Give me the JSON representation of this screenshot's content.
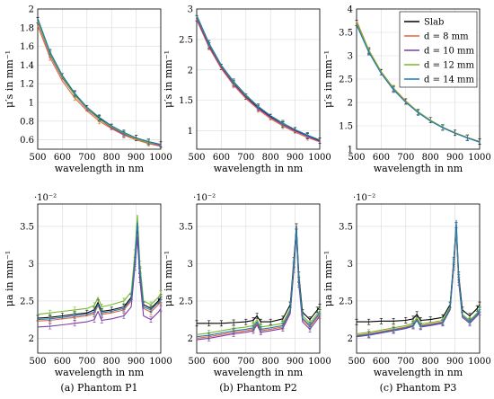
{
  "figure": {
    "legend_entries": [
      "Slab",
      "d = 8 mm",
      "d = 10 mm",
      "d = 12 mm",
      "d = 14 mm"
    ],
    "colors": {
      "Slab": "#000000",
      "d = 8 mm": "#e8643c",
      "d = 10 mm": "#7a3fa8",
      "d = 12 mm": "#76b82a",
      "d = 14 mm": "#1f77b4"
    }
  },
  "chart_data": [
    {
      "type": "line",
      "panel": "P1-mus",
      "xlabel": "wavelength in nm",
      "ylabel": "μ′s in mm⁻¹",
      "xlim": [
        500,
        1000
      ],
      "ylim": [
        0.5,
        2.0
      ],
      "xticks": [
        "500",
        "600",
        "700",
        "800",
        "900",
        "1000"
      ],
      "yticks": [
        "0.6",
        "0.8",
        "1",
        "1.2",
        "1.4",
        "1.6",
        "1.8",
        "2"
      ],
      "grid": true,
      "x": [
        500,
        550,
        600,
        650,
        700,
        750,
        800,
        850,
        900,
        950,
        1000
      ],
      "series": [
        {
          "name": "Slab",
          "values": [
            1.88,
            1.53,
            1.28,
            1.09,
            0.94,
            0.83,
            0.74,
            0.67,
            0.62,
            0.58,
            0.55
          ]
        },
        {
          "name": "d = 8 mm",
          "values": [
            1.82,
            1.48,
            1.23,
            1.05,
            0.91,
            0.8,
            0.72,
            0.65,
            0.6,
            0.56,
            0.53
          ]
        },
        {
          "name": "d = 10 mm",
          "values": [
            1.86,
            1.51,
            1.26,
            1.08,
            0.93,
            0.82,
            0.73,
            0.66,
            0.61,
            0.57,
            0.54
          ]
        },
        {
          "name": "d = 12 mm",
          "values": [
            1.87,
            1.52,
            1.27,
            1.08,
            0.94,
            0.82,
            0.74,
            0.67,
            0.61,
            0.57,
            0.55
          ]
        },
        {
          "name": "d = 14 mm",
          "values": [
            1.9,
            1.54,
            1.29,
            1.1,
            0.95,
            0.84,
            0.75,
            0.68,
            0.62,
            0.58,
            0.55
          ]
        }
      ]
    },
    {
      "type": "line",
      "panel": "P2-mus",
      "xlabel": "wavelength in nm",
      "ylabel": "μ′s in mm⁻¹",
      "xlim": [
        500,
        1000
      ],
      "ylim": [
        0.7,
        3.0
      ],
      "xticks": [
        "500",
        "600",
        "700",
        "800",
        "900",
        "1000"
      ],
      "yticks": [
        "1",
        "1.5",
        "2",
        "2.5",
        "3"
      ],
      "grid": true,
      "x": [
        500,
        550,
        600,
        650,
        700,
        750,
        800,
        850,
        900,
        950,
        1000
      ],
      "series": [
        {
          "name": "Slab",
          "values": [
            2.85,
            2.4,
            2.05,
            1.78,
            1.56,
            1.38,
            1.23,
            1.11,
            1.01,
            0.92,
            0.84
          ]
        },
        {
          "name": "d = 8 mm",
          "values": [
            2.82,
            2.37,
            2.02,
            1.75,
            1.53,
            1.35,
            1.2,
            1.08,
            0.98,
            0.89,
            0.82
          ]
        },
        {
          "name": "d = 10 mm",
          "values": [
            2.84,
            2.39,
            2.04,
            1.77,
            1.55,
            1.37,
            1.22,
            1.1,
            1.0,
            0.91,
            0.83
          ]
        },
        {
          "name": "d = 12 mm",
          "values": [
            2.88,
            2.43,
            2.07,
            1.8,
            1.58,
            1.4,
            1.25,
            1.12,
            1.02,
            0.93,
            0.85
          ]
        },
        {
          "name": "d = 14 mm",
          "values": [
            2.9,
            2.44,
            2.08,
            1.81,
            1.59,
            1.4,
            1.25,
            1.13,
            1.02,
            0.93,
            0.85
          ]
        }
      ]
    },
    {
      "type": "line",
      "panel": "P3-mus",
      "xlabel": "wavelength in nm",
      "ylabel": "μ′s in mm⁻¹",
      "xlim": [
        500,
        1000
      ],
      "ylim": [
        1.0,
        4.0
      ],
      "xticks": [
        "500",
        "600",
        "700",
        "800",
        "900",
        "1000"
      ],
      "yticks": [
        "1",
        "1.5",
        "2",
        "2.5",
        "3",
        "3.5",
        "4"
      ],
      "grid": true,
      "legend": "top-right",
      "x": [
        500,
        550,
        600,
        650,
        700,
        750,
        800,
        850,
        900,
        950,
        1000
      ],
      "series": [
        {
          "name": "Slab",
          "values": [
            3.7,
            3.1,
            2.65,
            2.3,
            2.02,
            1.8,
            1.62,
            1.47,
            1.35,
            1.25,
            1.16
          ]
        },
        {
          "name": "d = 8 mm",
          "values": [
            3.75,
            3.12,
            2.66,
            2.31,
            2.03,
            1.8,
            1.62,
            1.47,
            1.35,
            1.25,
            1.16
          ]
        },
        {
          "name": "d = 10 mm",
          "values": [
            3.68,
            3.08,
            2.63,
            2.28,
            2.01,
            1.79,
            1.61,
            1.46,
            1.34,
            1.24,
            1.15
          ]
        },
        {
          "name": "d = 12 mm",
          "values": [
            3.72,
            3.11,
            2.65,
            2.3,
            2.02,
            1.8,
            1.62,
            1.47,
            1.35,
            1.25,
            1.16
          ]
        },
        {
          "name": "d = 14 mm",
          "values": [
            3.66,
            3.07,
            2.62,
            2.27,
            2.0,
            1.78,
            1.6,
            1.46,
            1.34,
            1.24,
            1.15
          ]
        }
      ]
    },
    {
      "type": "line",
      "panel": "P1-mua",
      "title": "(a) Phantom P1",
      "xlabel": "wavelength in nm",
      "ylabel": "μa in mm⁻¹",
      "scale_note": "·10⁻²",
      "xlim": [
        500,
        1000
      ],
      "ylim": [
        1.8,
        3.8
      ],
      "xticks": [
        "500",
        "600",
        "700",
        "800",
        "900",
        "1000"
      ],
      "yticks": [
        "2",
        "2.5",
        "3",
        "3.5"
      ],
      "grid": true,
      "x": [
        500,
        550,
        600,
        650,
        700,
        730,
        745,
        760,
        800,
        850,
        880,
        895,
        905,
        915,
        930,
        960,
        990,
        1000
      ],
      "series": [
        {
          "name": "Slab",
          "values": [
            2.27,
            2.28,
            2.3,
            2.32,
            2.34,
            2.38,
            2.48,
            2.36,
            2.38,
            2.42,
            2.55,
            3.05,
            3.45,
            2.9,
            2.45,
            2.4,
            2.5,
            2.55
          ]
        },
        {
          "name": "d = 8 mm",
          "values": [
            2.23,
            2.24,
            2.26,
            2.28,
            2.3,
            2.33,
            2.44,
            2.32,
            2.34,
            2.38,
            2.5,
            3.0,
            3.4,
            2.85,
            2.4,
            2.35,
            2.45,
            2.5
          ]
        },
        {
          "name": "d = 10 mm",
          "values": [
            2.15,
            2.16,
            2.18,
            2.2,
            2.22,
            2.25,
            2.36,
            2.24,
            2.26,
            2.3,
            2.42,
            2.95,
            3.35,
            2.78,
            2.3,
            2.25,
            2.35,
            2.4
          ]
        },
        {
          "name": "d = 12 mm",
          "values": [
            2.32,
            2.34,
            2.36,
            2.38,
            2.4,
            2.44,
            2.55,
            2.42,
            2.45,
            2.5,
            2.62,
            3.15,
            3.65,
            3.0,
            2.5,
            2.45,
            2.55,
            2.6
          ]
        },
        {
          "name": "d = 14 mm",
          "values": [
            2.25,
            2.26,
            2.28,
            2.3,
            2.32,
            2.35,
            2.46,
            2.34,
            2.36,
            2.4,
            2.52,
            3.05,
            3.55,
            2.92,
            2.42,
            2.38,
            2.48,
            2.52
          ]
        }
      ]
    },
    {
      "type": "line",
      "panel": "P2-mua",
      "title": "(b) Phantom P2",
      "xlabel": "wavelength in nm",
      "ylabel": "μa in mm⁻¹",
      "scale_note": "·10⁻²",
      "xlim": [
        500,
        1000
      ],
      "ylim": [
        1.8,
        3.8
      ],
      "xticks": [
        "500",
        "600",
        "700",
        "800",
        "900",
        "1000"
      ],
      "yticks": [
        "2",
        "2.5",
        "3",
        "3.5"
      ],
      "grid": true,
      "x": [
        500,
        550,
        600,
        650,
        700,
        730,
        745,
        760,
        800,
        850,
        880,
        895,
        905,
        915,
        930,
        960,
        990,
        1000
      ],
      "series": [
        {
          "name": "Slab",
          "values": [
            2.2,
            2.2,
            2.2,
            2.21,
            2.22,
            2.24,
            2.3,
            2.22,
            2.22,
            2.26,
            2.45,
            3.05,
            3.5,
            2.85,
            2.35,
            2.25,
            2.38,
            2.42
          ]
        },
        {
          "name": "d = 8 mm",
          "values": [
            2.0,
            2.02,
            2.05,
            2.08,
            2.1,
            2.12,
            2.2,
            2.1,
            2.12,
            2.15,
            2.35,
            2.95,
            3.4,
            2.75,
            2.25,
            2.15,
            2.28,
            2.32
          ]
        },
        {
          "name": "d = 10 mm",
          "values": [
            1.98,
            2.0,
            2.03,
            2.06,
            2.08,
            2.1,
            2.18,
            2.08,
            2.1,
            2.13,
            2.33,
            2.92,
            3.38,
            2.72,
            2.22,
            2.12,
            2.25,
            2.3
          ]
        },
        {
          "name": "d = 12 mm",
          "values": [
            2.05,
            2.07,
            2.1,
            2.13,
            2.15,
            2.17,
            2.25,
            2.15,
            2.17,
            2.2,
            2.4,
            3.0,
            3.45,
            2.8,
            2.3,
            2.2,
            2.33,
            2.37
          ]
        },
        {
          "name": "d = 14 mm",
          "values": [
            2.02,
            2.04,
            2.07,
            2.1,
            2.12,
            2.14,
            2.22,
            2.12,
            2.14,
            2.17,
            2.37,
            2.98,
            3.48,
            2.78,
            2.27,
            2.17,
            2.3,
            2.35
          ]
        }
      ]
    },
    {
      "type": "line",
      "panel": "P3-mua",
      "title": "(c) Phantom P3",
      "xlabel": "wavelength in nm",
      "ylabel": "μa in mm⁻¹",
      "scale_note": "·10⁻²",
      "xlim": [
        500,
        1000
      ],
      "ylim": [
        1.8,
        3.8
      ],
      "xticks": [
        "500",
        "600",
        "700",
        "800",
        "900",
        "1000"
      ],
      "yticks": [
        "2",
        "2.5",
        "3",
        "3.5"
      ],
      "grid": true,
      "x": [
        500,
        550,
        600,
        650,
        700,
        730,
        745,
        760,
        800,
        850,
        880,
        895,
        905,
        915,
        930,
        960,
        990,
        1000
      ],
      "series": [
        {
          "name": "Slab",
          "values": [
            2.22,
            2.22,
            2.23,
            2.23,
            2.24,
            2.26,
            2.32,
            2.24,
            2.25,
            2.28,
            2.45,
            3.05,
            3.52,
            2.85,
            2.38,
            2.3,
            2.4,
            2.45
          ]
        },
        {
          "name": "d = 8 mm",
          "values": [
            2.04,
            2.06,
            2.09,
            2.12,
            2.15,
            2.18,
            2.26,
            2.17,
            2.19,
            2.22,
            2.4,
            2.98,
            3.45,
            2.78,
            2.3,
            2.22,
            2.32,
            2.38
          ]
        },
        {
          "name": "d = 10 mm",
          "values": [
            2.02,
            2.04,
            2.07,
            2.1,
            2.13,
            2.16,
            2.24,
            2.15,
            2.17,
            2.2,
            2.38,
            2.95,
            3.42,
            2.75,
            2.28,
            2.2,
            2.3,
            2.35
          ]
        },
        {
          "name": "d = 12 mm",
          "values": [
            2.06,
            2.08,
            2.11,
            2.14,
            2.17,
            2.2,
            2.28,
            2.19,
            2.21,
            2.24,
            2.42,
            3.0,
            3.48,
            2.8,
            2.32,
            2.24,
            2.34,
            2.4
          ]
        },
        {
          "name": "d = 14 mm",
          "values": [
            2.03,
            2.05,
            2.08,
            2.11,
            2.14,
            2.17,
            2.25,
            2.16,
            2.18,
            2.21,
            2.4,
            3.02,
            3.58,
            2.82,
            2.3,
            2.22,
            2.32,
            2.38
          ]
        }
      ]
    }
  ]
}
